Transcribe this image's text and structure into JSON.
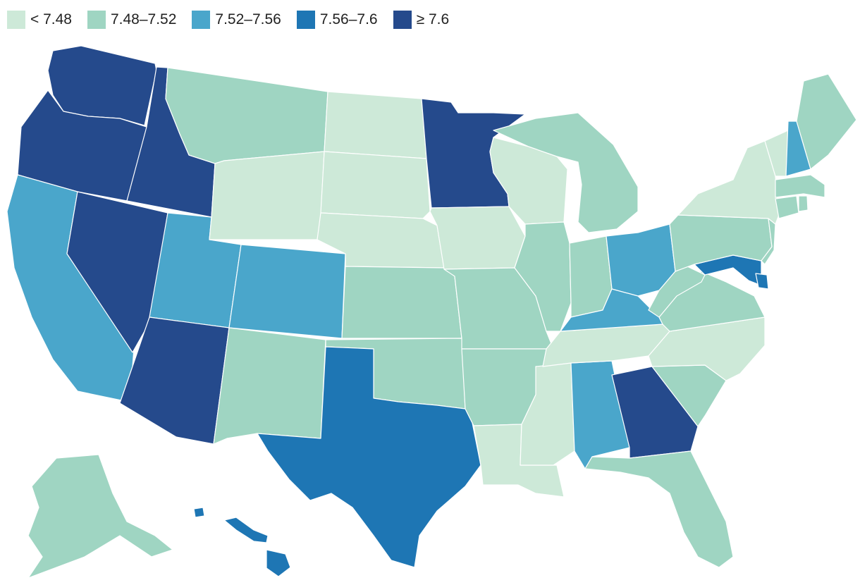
{
  "legend": [
    {
      "label": "< 7.48",
      "color": "#cde9d8"
    },
    {
      "label": "7.48–7.52",
      "color": "#9fd5c2"
    },
    {
      "label": "7.52–7.56",
      "color": "#4aa6cb"
    },
    {
      "label": "7.56–7.6",
      "color": "#1e76b4"
    },
    {
      "label": "≥ 7.6",
      "color": "#254a8c"
    }
  ],
  "states": [
    {
      "id": "WA",
      "bin": 4
    },
    {
      "id": "OR",
      "bin": 4
    },
    {
      "id": "ID",
      "bin": 4
    },
    {
      "id": "NV",
      "bin": 4
    },
    {
      "id": "AZ",
      "bin": 4
    },
    {
      "id": "MN",
      "bin": 4
    },
    {
      "id": "GA",
      "bin": 4
    },
    {
      "id": "TX",
      "bin": 3
    },
    {
      "id": "MD",
      "bin": 3
    },
    {
      "id": "DE",
      "bin": 3
    },
    {
      "id": "HI",
      "bin": 3
    },
    {
      "id": "CA",
      "bin": 2
    },
    {
      "id": "UT",
      "bin": 2
    },
    {
      "id": "CO",
      "bin": 2
    },
    {
      "id": "KY",
      "bin": 2
    },
    {
      "id": "OH",
      "bin": 2
    },
    {
      "id": "AL",
      "bin": 2
    },
    {
      "id": "NH",
      "bin": 2
    },
    {
      "id": "MT",
      "bin": 1
    },
    {
      "id": "NM",
      "bin": 1
    },
    {
      "id": "KS",
      "bin": 1
    },
    {
      "id": "OK",
      "bin": 1
    },
    {
      "id": "MO",
      "bin": 1
    },
    {
      "id": "AR",
      "bin": 1
    },
    {
      "id": "IL",
      "bin": 1
    },
    {
      "id": "IN",
      "bin": 1
    },
    {
      "id": "MI",
      "bin": 1
    },
    {
      "id": "FL",
      "bin": 1
    },
    {
      "id": "SC",
      "bin": 1
    },
    {
      "id": "VA",
      "bin": 1
    },
    {
      "id": "WV",
      "bin": 1
    },
    {
      "id": "PA",
      "bin": 1
    },
    {
      "id": "NJ",
      "bin": 1
    },
    {
      "id": "CT",
      "bin": 1
    },
    {
      "id": "MA",
      "bin": 1
    },
    {
      "id": "RI",
      "bin": 1
    },
    {
      "id": "ME",
      "bin": 1
    },
    {
      "id": "AK",
      "bin": 1
    },
    {
      "id": "ND",
      "bin": 0
    },
    {
      "id": "SD",
      "bin": 0
    },
    {
      "id": "NE",
      "bin": 0
    },
    {
      "id": "WY",
      "bin": 0
    },
    {
      "id": "IA",
      "bin": 0
    },
    {
      "id": "WI",
      "bin": 0
    },
    {
      "id": "LA",
      "bin": 0
    },
    {
      "id": "MS",
      "bin": 0
    },
    {
      "id": "TN",
      "bin": 0
    },
    {
      "id": "NC",
      "bin": 0
    },
    {
      "id": "NY",
      "bin": 0
    },
    {
      "id": "VT",
      "bin": 0
    }
  ]
}
